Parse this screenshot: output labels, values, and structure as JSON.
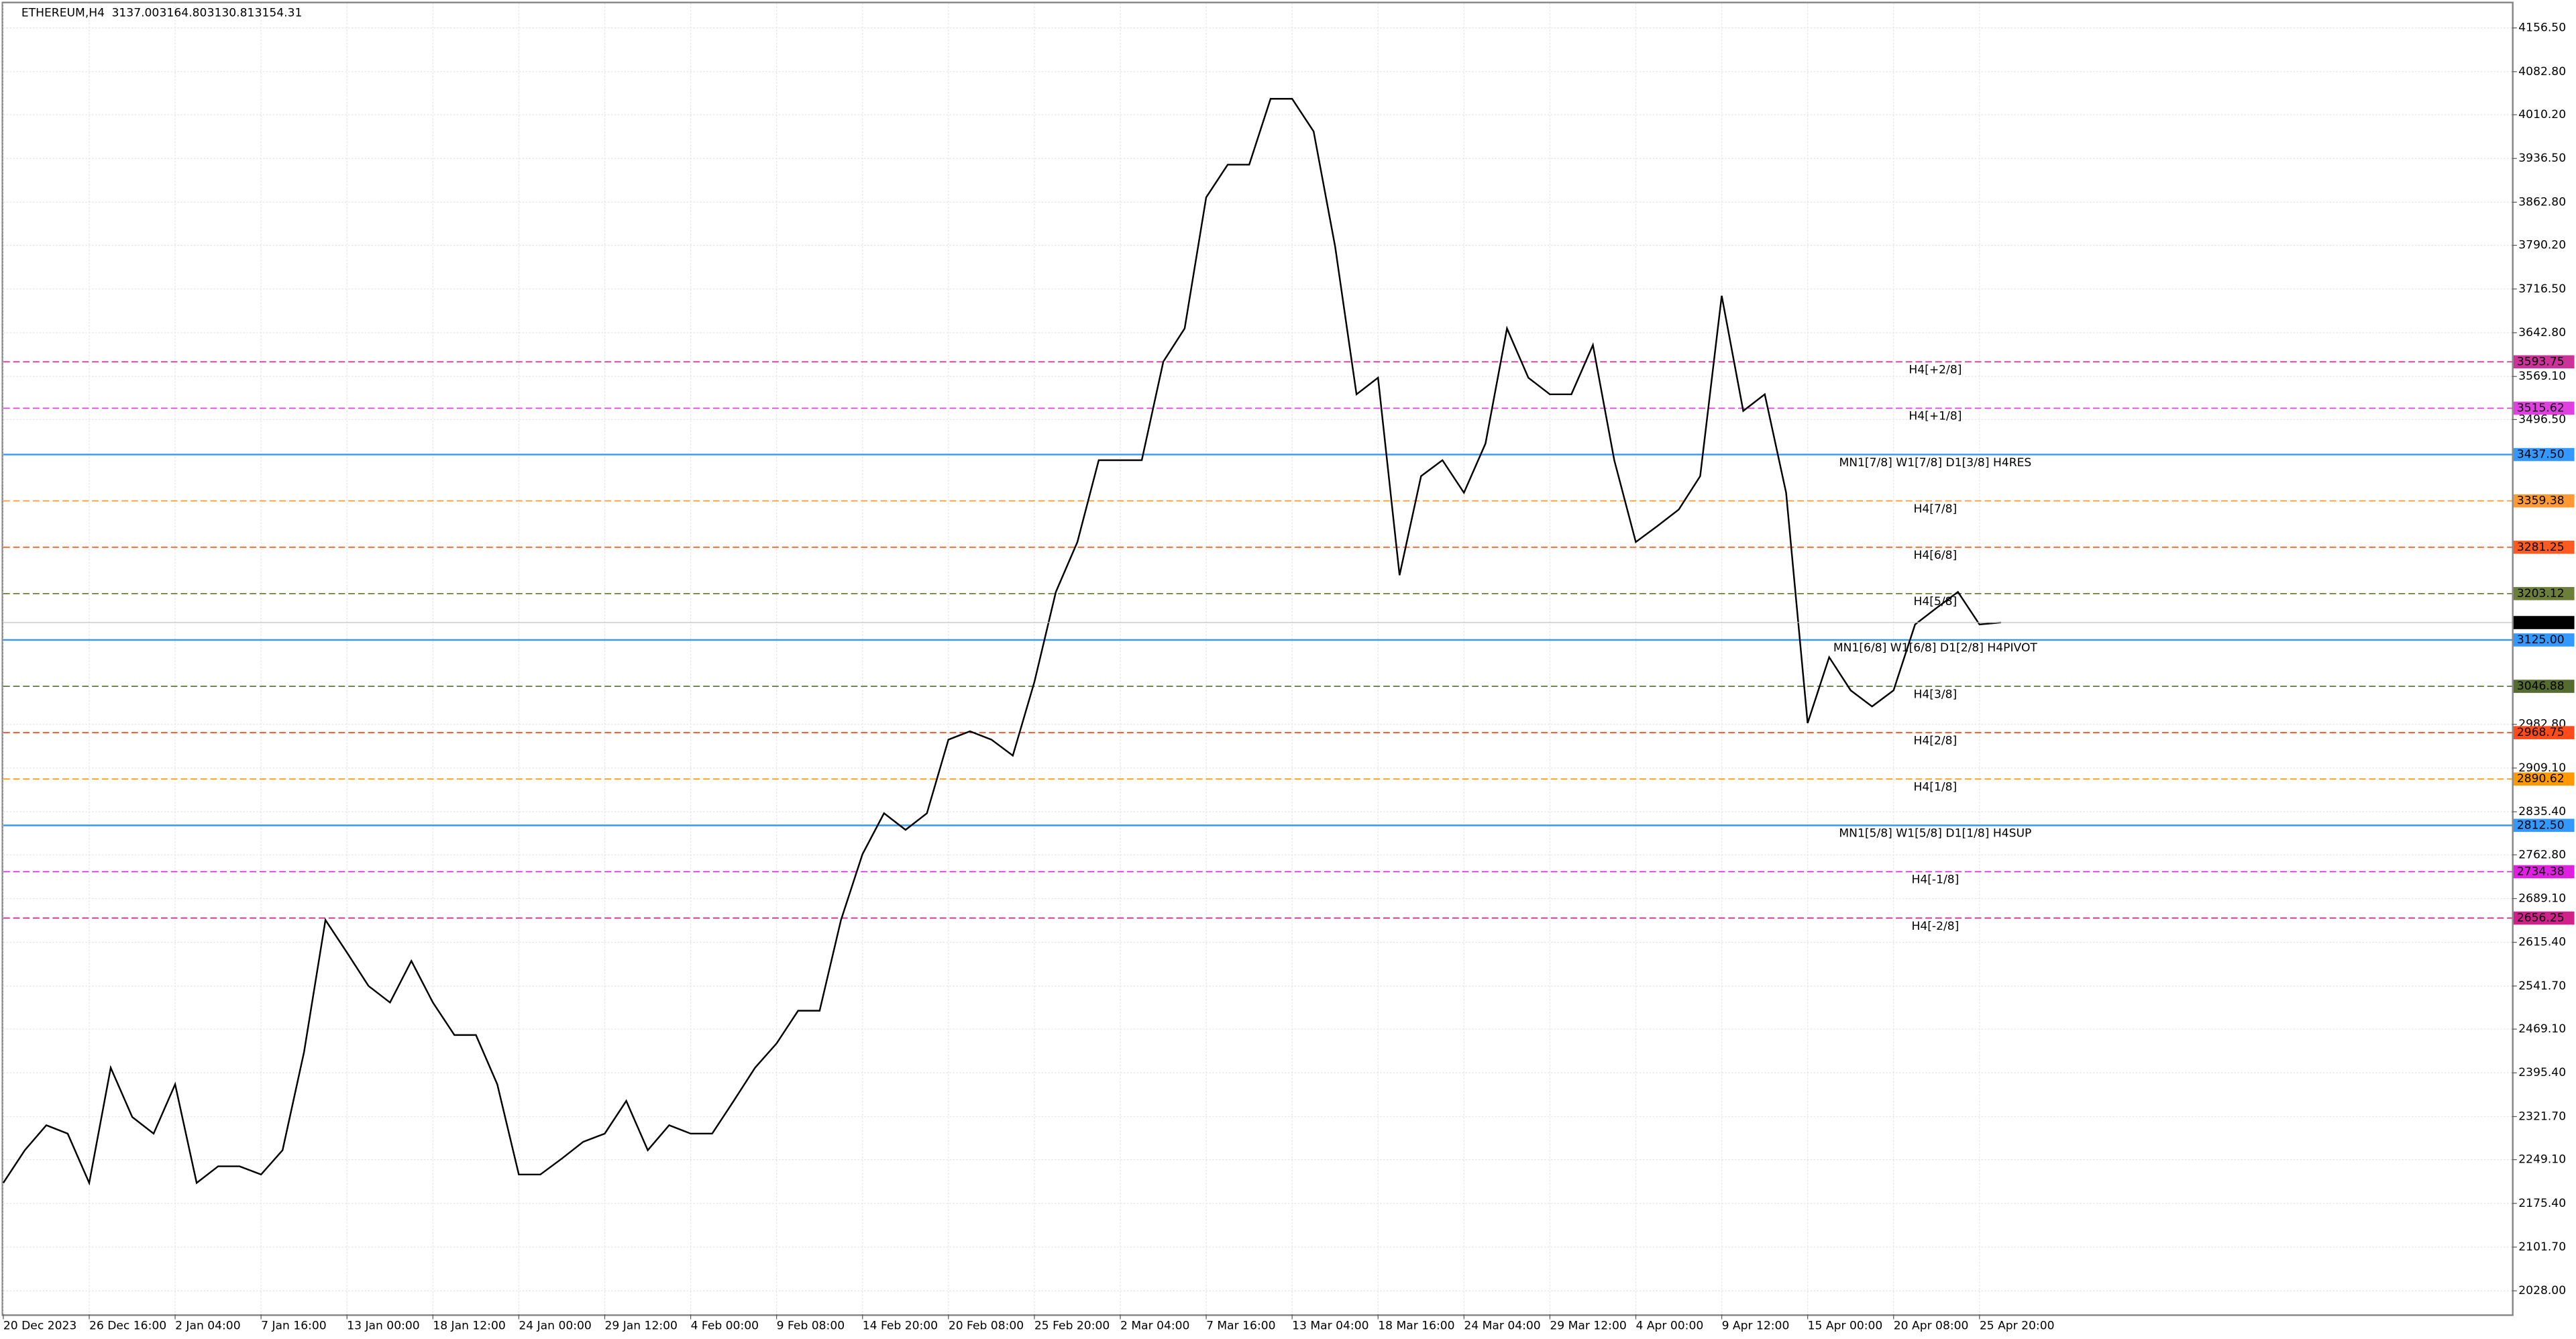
{
  "window_title": "ETHEREUM,H4",
  "header_values": [
    "3137.00",
    "3164.80",
    "3130.81",
    "3154.31"
  ],
  "chart_data": {
    "type": "line",
    "color": "#000000",
    "grid": true,
    "ylim": [
      1988.4,
      4198.0
    ],
    "yticks": [
      {
        "value": 4156.5,
        "label": "4156.50"
      },
      {
        "value": 4082.8,
        "label": "4082.80"
      },
      {
        "value": 4010.2,
        "label": "4010.20"
      },
      {
        "value": 3936.5,
        "label": "3936.50"
      },
      {
        "value": 3862.8,
        "label": "3862.80"
      },
      {
        "value": 3790.2,
        "label": "3790.20"
      },
      {
        "value": 3716.5,
        "label": "3716.50"
      },
      {
        "value": 3642.8,
        "label": "3642.80"
      },
      {
        "value": 3569.1,
        "label": "3569.10"
      },
      {
        "value": 3496.5,
        "label": "3496.50"
      },
      {
        "value": 2982.8,
        "label": "2982.80"
      },
      {
        "value": 2909.1,
        "label": "2909.10"
      },
      {
        "value": 2835.4,
        "label": "2835.40"
      },
      {
        "value": 2762.8,
        "label": "2762.80"
      },
      {
        "value": 2689.1,
        "label": "2689.10"
      },
      {
        "value": 2615.4,
        "label": "2615.40"
      },
      {
        "value": 2541.7,
        "label": "2541.70"
      },
      {
        "value": 2469.1,
        "label": "2469.10"
      },
      {
        "value": 2395.4,
        "label": "2395.40"
      },
      {
        "value": 2321.7,
        "label": "2321.70"
      },
      {
        "value": 2249.1,
        "label": "2249.10"
      },
      {
        "value": 2175.4,
        "label": "2175.40"
      },
      {
        "value": 2101.7,
        "label": "2101.70"
      },
      {
        "value": 2028,
        "label": "2028.00"
      }
    ],
    "categories": [
      "20 Dec 2023",
      null,
      null,
      null,
      "26 Dec 16:00",
      null,
      null,
      null,
      "2 Jan 04:00",
      null,
      null,
      null,
      "7 Jan 16:00",
      null,
      null,
      null,
      "13 Jan 00:00",
      null,
      null,
      null,
      "18 Jan 12:00",
      null,
      null,
      null,
      "24 Jan 00:00",
      null,
      null,
      null,
      "29 Jan 12:00",
      null,
      null,
      null,
      "4 Feb 00:00",
      null,
      null,
      null,
      "9 Feb 08:00",
      null,
      null,
      null,
      "14 Feb 20:00",
      null,
      null,
      null,
      "20 Feb 08:00",
      null,
      null,
      null,
      "25 Feb 20:00",
      null,
      null,
      null,
      "2 Mar 04:00",
      null,
      null,
      null,
      "7 Mar 16:00",
      null,
      null,
      null,
      "13 Mar 04:00",
      null,
      null,
      null,
      "18 Mar 16:00",
      null,
      null,
      null,
      "24 Mar 04:00",
      null,
      null,
      null,
      "29 Mar 12:00",
      null,
      null,
      null,
      "4 Apr 00:00",
      null,
      null,
      null,
      "9 Apr 12:00",
      null,
      null,
      null,
      "15 Apr 00:00",
      null,
      null,
      null,
      "20 Apr 08:00",
      null,
      null,
      null,
      "25 Apr 20:00",
      null
    ],
    "values": [
      2210,
      2265,
      2307,
      2293,
      2210,
      2404,
      2321,
      2293,
      2376,
      2210,
      2238,
      2238,
      2224,
      2265,
      2431,
      2653,
      2598,
      2542,
      2514,
      2584,
      2514,
      2459,
      2459,
      2376,
      2224,
      2224,
      2251,
      2279,
      2293,
      2348,
      2265,
      2307,
      2293,
      2293,
      2348,
      2404,
      2445,
      2500,
      2500,
      2653,
      2764,
      2833,
      2805,
      2833,
      2957,
      2971,
      2957,
      2930,
      3054,
      3206,
      3290,
      3428,
      3428,
      3428,
      3594,
      3650,
      3871,
      3926,
      3926,
      4037,
      4037,
      3982,
      3788,
      3539,
      3567,
      3234,
      3401,
      3428,
      3373,
      3456,
      3650,
      3567,
      3539,
      3539,
      3622,
      3428,
      3290,
      3317,
      3345,
      3401,
      3705,
      3511,
      3539,
      3373,
      2985,
      3096,
      3040,
      3013,
      3040,
      3151,
      3179,
      3206,
      3151,
      3154.31
    ],
    "levels": [
      {
        "label": "H4[+2/8]",
        "price": 3593.75,
        "price_label": "3593.75",
        "color": "#cc3399",
        "style": "dash"
      },
      {
        "label": "H4[+1/8]",
        "price": 3515.62,
        "price_label": "3515.62",
        "color": "#e040e0",
        "style": "dash"
      },
      {
        "label": "MN1[7/8] W1[7/8] D1[3/8] H4RES",
        "price": 3437.5,
        "price_label": "3437.50",
        "color": "#3399ff",
        "style": "solid"
      },
      {
        "label": "H4[7/8]",
        "price": 3359.38,
        "price_label": "3359.38",
        "color": "#ff9933",
        "style": "dash"
      },
      {
        "label": "H4[6/8]",
        "price": 3281.25,
        "price_label": "3281.25",
        "color": "#ff5a1f",
        "style": "dash"
      },
      {
        "label": "H4[5/8]",
        "price": 3203.12,
        "price_label": "3203.12",
        "color": "#6b7f3a",
        "style": "dash"
      },
      {
        "label": "MN1[6/8] W1[6/8] D1[2/8] H4PIVOT",
        "price": 3125,
        "price_label": "3125.00",
        "color": "#3399ff",
        "style": "solid"
      },
      {
        "label": "H4[3/8]",
        "price": 3046.88,
        "price_label": "3046.88",
        "color": "#556b2f",
        "style": "dash"
      },
      {
        "label": "H4[2/8]",
        "price": 2968.75,
        "price_label": "2968.75",
        "color": "#ff4a1a",
        "style": "dash"
      },
      {
        "label": "H4[1/8]",
        "price": 2890.62,
        "price_label": "2890.62",
        "color": "#ff9900",
        "style": "dash"
      },
      {
        "label": "MN1[5/8] W1[5/8] D1[1/8] H4SUP",
        "price": 2812.5,
        "price_label": "2812.50",
        "color": "#3399ff",
        "style": "solid"
      },
      {
        "label": "H4[-1/8]",
        "price": 2734.38,
        "price_label": "2734.38",
        "color": "#e020e0",
        "style": "dash"
      },
      {
        "label": "H4[-2/8]",
        "price": 2656.25,
        "price_label": "2656.25",
        "color": "#d0208a",
        "style": "dash"
      }
    ],
    "current_price": 3154.31
  }
}
